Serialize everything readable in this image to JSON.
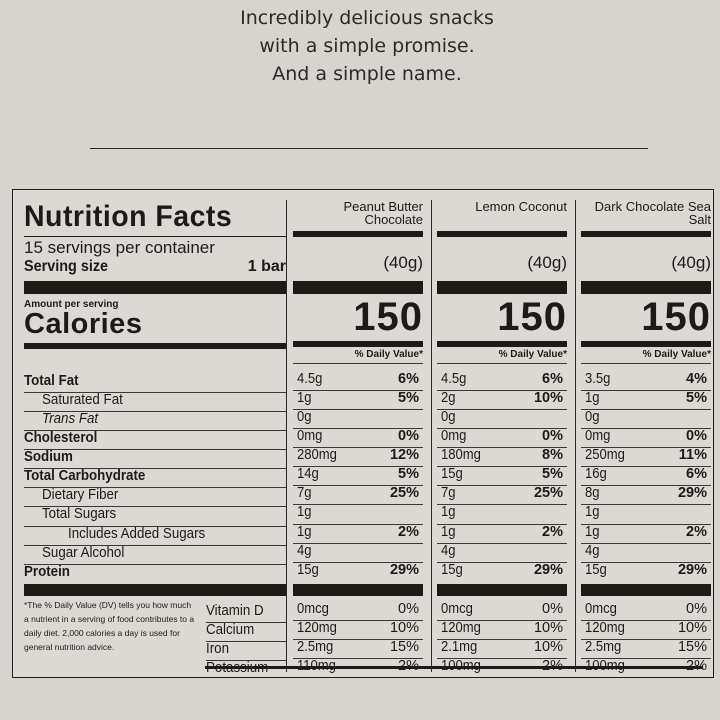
{
  "tagline": {
    "line1": "Incredibly delicious snacks",
    "line2": "with a simple promise.",
    "line3": "And a simple name."
  },
  "nutrition": {
    "title": "Nutrition Facts",
    "servings": "15 servings per container",
    "serving_size_label": "Serving size",
    "serving_size_value": "1 bar",
    "amount_per_serving": "Amount per serving",
    "calories_label": "Calories",
    "dv_header": "% Daily Value*",
    "footnote": "*The % Daily Value (DV) tells you how much a nutrient in a serving of food contributes to a daily diet. 2,000 calories a day is used for general nutrition advice.",
    "nutrients": [
      "Total Fat",
      "Saturated Fat",
      "Trans Fat",
      "Cholesterol",
      "Sodium",
      "Total Carbohydrate",
      "Dietary Fiber",
      "Total Sugars",
      "Includes  Added Sugars",
      "Sugar Alcohol",
      "Protein"
    ],
    "minerals": [
      "Vitamin D",
      "Calcium",
      "Iron",
      "Potassium"
    ],
    "flavors": [
      {
        "name": "Peanut Butter Chocolate",
        "serving": "(40g)",
        "calories": "150",
        "amounts": [
          "4.5g",
          "1g",
          "0g",
          "0mg",
          "280mg",
          "14g",
          "7g",
          "1g",
          "1g",
          "4g",
          "15g"
        ],
        "dvs": [
          "6%",
          "5%",
          "",
          "0%",
          "12%",
          "5%",
          "25%",
          "",
          "2%",
          "",
          "29%"
        ],
        "mineral_amounts": [
          "0mcg",
          "120mg",
          "2.5mg",
          "110mg"
        ],
        "mineral_dvs": [
          "0%",
          "10%",
          "15%",
          "2%"
        ]
      },
      {
        "name": "Lemon Coconut",
        "serving": "(40g)",
        "calories": "150",
        "amounts": [
          "4.5g",
          "2g",
          "0g",
          "0mg",
          "180mg",
          "15g",
          "7g",
          "1g",
          "1g",
          "4g",
          "15g"
        ],
        "dvs": [
          "6%",
          "10%",
          "",
          "0%",
          "8%",
          "5%",
          "25%",
          "",
          "2%",
          "",
          "29%"
        ],
        "mineral_amounts": [
          "0mcg",
          "120mg",
          "2.1mg",
          "100mg"
        ],
        "mineral_dvs": [
          "0%",
          "10%",
          "10%",
          "2%"
        ]
      },
      {
        "name": "Dark Chocolate Sea Salt",
        "serving": "(40g)",
        "calories": "150",
        "amounts": [
          "3.5g",
          "1g",
          "0g",
          "0mg",
          "250mg",
          "16g",
          "8g",
          "1g",
          "1g",
          "4g",
          "15g"
        ],
        "dvs": [
          "4%",
          "5%",
          "",
          "0%",
          "11%",
          "6%",
          "29%",
          "",
          "2%",
          "",
          "29%"
        ],
        "mineral_amounts": [
          "0mcg",
          "120mg",
          "2.5mg",
          "100mg"
        ],
        "mineral_dvs": [
          "0%",
          "10%",
          "15%",
          "2%"
        ]
      }
    ]
  }
}
